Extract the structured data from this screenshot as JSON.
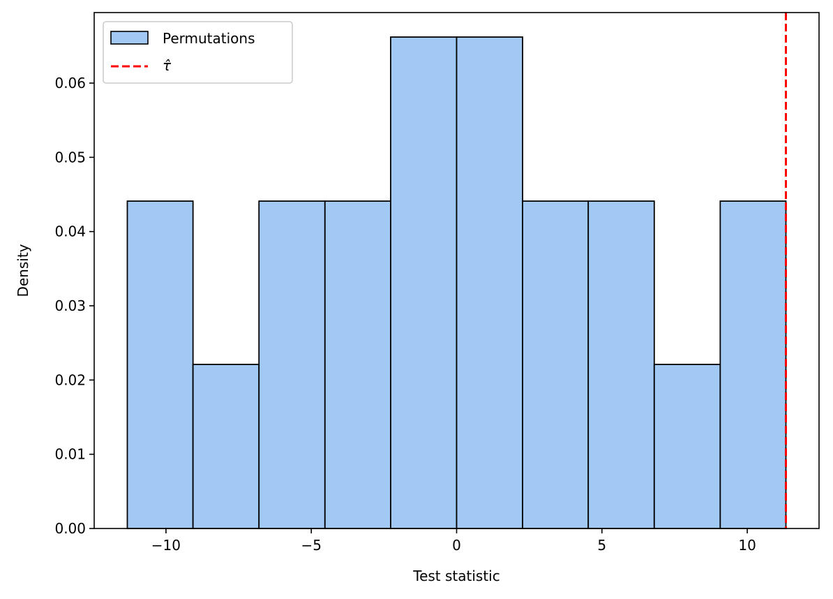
{
  "chart_data": {
    "type": "bar",
    "histogram": true,
    "bin_edges": [
      -11.33,
      -9.07,
      -6.8,
      -4.53,
      -2.27,
      0.0,
      2.27,
      4.53,
      6.8,
      9.07,
      11.33
    ],
    "values": [
      0.0441,
      0.0221,
      0.0441,
      0.0441,
      0.0662,
      0.0662,
      0.0441,
      0.0441,
      0.0221,
      0.0441
    ],
    "tau_hat": 11.33,
    "xlabel": "Test statistic",
    "ylabel": "Density",
    "xlim": [
      -12.47,
      12.47
    ],
    "ylim": [
      0,
      0.0695
    ],
    "xticks": [
      -10,
      -5,
      0,
      5,
      10
    ],
    "xtick_labels": [
      "−10",
      "−5",
      "0",
      "5",
      "10"
    ],
    "yticks": [
      0.0,
      0.01,
      0.02,
      0.03,
      0.04,
      0.05,
      0.06
    ],
    "ytick_labels": [
      "0.00",
      "0.01",
      "0.02",
      "0.03",
      "0.04",
      "0.05",
      "0.06"
    ],
    "legend": {
      "placement": "top-left",
      "entries": [
        {
          "label": "Permutations",
          "kind": "patch"
        },
        {
          "label": "τ̂",
          "kind": "dashed-line"
        }
      ]
    },
    "colors": {
      "bar_fill": "#a1c9f4",
      "bar_edge": "#000000",
      "tau_line": "#ff0000"
    }
  }
}
